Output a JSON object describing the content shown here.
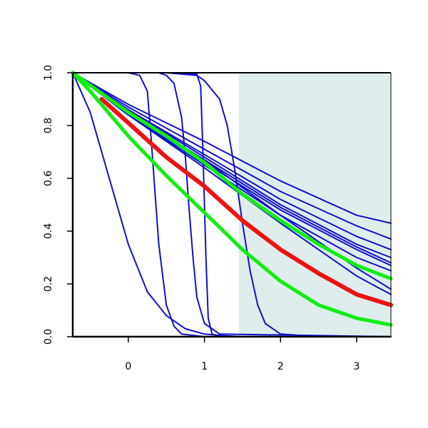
{
  "chart_data": {
    "type": "line",
    "title": "",
    "xlabel": "",
    "ylabel": "",
    "xlim": [
      -0.73,
      3.45
    ],
    "ylim": [
      0.0,
      1.0
    ],
    "x_ticks": [
      0,
      1,
      2,
      3
    ],
    "y_ticks": [
      0.0,
      0.2,
      0.4,
      0.6,
      0.8,
      1.0
    ],
    "x_tick_labels": [
      "0",
      "1",
      "2",
      "3"
    ],
    "y_tick_labels": [
      "0.0",
      "0.2",
      "0.4",
      "0.6",
      "0.8",
      "1.0"
    ],
    "shaded_region": {
      "x_start": 1.45,
      "x_end": 3.45,
      "color": "#dfeded"
    },
    "grid": false,
    "legend": "none",
    "colors": {
      "blue": "#1010cc",
      "red": "#ee1111",
      "green": "#11ee11",
      "axis": "#000000"
    },
    "series": [
      {
        "color": "#1010cc",
        "width": 2,
        "x": [
          -0.73,
          -0.5,
          -0.25,
          0.0,
          0.25,
          0.5,
          0.75,
          1.0,
          1.25,
          1.5,
          2.0,
          2.5,
          3.0,
          3.45
        ],
        "y": [
          1.0,
          0.85,
          0.6,
          0.35,
          0.17,
          0.08,
          0.03,
          0.01,
          0.004,
          0.0,
          0.0,
          0.0,
          0.0,
          0.0
        ]
      },
      {
        "color": "#1010cc",
        "width": 2,
        "x": [
          -0.73,
          0.0,
          0.15,
          0.25,
          0.3,
          0.35,
          0.4,
          0.5,
          0.6,
          0.7,
          1.0,
          3.45
        ],
        "y": [
          1.0,
          1.0,
          0.99,
          0.93,
          0.75,
          0.55,
          0.35,
          0.12,
          0.04,
          0.01,
          0.0,
          0.0
        ]
      },
      {
        "color": "#1010cc",
        "width": 2,
        "x": [
          -0.73,
          0.0,
          0.4,
          0.5,
          0.6,
          0.7,
          0.75,
          0.8,
          0.85,
          0.9,
          1.0,
          1.2,
          3.45
        ],
        "y": [
          1.0,
          1.0,
          1.0,
          0.99,
          0.96,
          0.83,
          0.68,
          0.48,
          0.3,
          0.15,
          0.05,
          0.01,
          0.0
        ]
      },
      {
        "color": "#1010cc",
        "width": 2,
        "x": [
          -0.73,
          0.5,
          0.9,
          0.95,
          0.98,
          1.0,
          1.02,
          1.05,
          1.1,
          1.2,
          3.45
        ],
        "y": [
          1.0,
          1.0,
          0.995,
          0.95,
          0.7,
          0.5,
          0.3,
          0.07,
          0.01,
          0.0,
          0.0
        ]
      },
      {
        "color": "#1010cc",
        "width": 2,
        "x": [
          -0.73,
          0.5,
          0.9,
          1.0,
          1.2,
          1.3,
          1.4,
          1.5,
          1.6,
          1.7,
          1.8,
          2.0,
          2.5,
          3.45
        ],
        "y": [
          1.0,
          1.0,
          0.99,
          0.97,
          0.9,
          0.8,
          0.63,
          0.43,
          0.25,
          0.12,
          0.05,
          0.01,
          0.0,
          0.0
        ]
      },
      {
        "color": "#1010cc",
        "width": 2,
        "x": [
          -0.73,
          0.0,
          1.0,
          2.0,
          3.0,
          3.45
        ],
        "y": [
          1.0,
          0.88,
          0.74,
          0.59,
          0.46,
          0.43
        ]
      },
      {
        "color": "#1010cc",
        "width": 2,
        "x": [
          -0.73,
          0.0,
          1.0,
          2.0,
          3.0,
          3.45
        ],
        "y": [
          1.0,
          0.87,
          0.71,
          0.55,
          0.42,
          0.37
        ]
      },
      {
        "color": "#1010cc",
        "width": 2,
        "x": [
          -0.73,
          0.0,
          1.0,
          2.0,
          3.0,
          3.45
        ],
        "y": [
          1.0,
          0.86,
          0.69,
          0.52,
          0.38,
          0.33
        ]
      },
      {
        "color": "#1010cc",
        "width": 2,
        "x": [
          -0.73,
          0.0,
          1.0,
          2.0,
          3.0,
          3.45
        ],
        "y": [
          1.0,
          0.86,
          0.68,
          0.5,
          0.35,
          0.3
        ]
      },
      {
        "color": "#1010cc",
        "width": 2,
        "x": [
          -0.73,
          0.0,
          1.0,
          2.0,
          3.0,
          3.45
        ],
        "y": [
          1.0,
          0.85,
          0.67,
          0.49,
          0.34,
          0.28
        ]
      },
      {
        "color": "#1010cc",
        "width": 2,
        "x": [
          -0.73,
          0.0,
          1.0,
          2.0,
          3.0,
          3.45
        ],
        "y": [
          1.0,
          0.84,
          0.66,
          0.48,
          0.33,
          0.27
        ]
      },
      {
        "color": "#1010cc",
        "width": 2,
        "x": [
          -0.73,
          0.0,
          1.0,
          2.0,
          3.0,
          3.45
        ],
        "y": [
          1.0,
          0.84,
          0.65,
          0.46,
          0.3,
          0.25
        ]
      },
      {
        "color": "#1010cc",
        "width": 2,
        "x": [
          -0.73,
          0.0,
          1.0,
          2.0,
          3.0,
          3.45
        ],
        "y": [
          1.0,
          0.85,
          0.67,
          0.46,
          0.26,
          0.18
        ]
      },
      {
        "color": "#1010cc",
        "width": 2,
        "x": [
          -0.73,
          0.0,
          1.0,
          2.0,
          3.0,
          3.45
        ],
        "y": [
          1.0,
          0.84,
          0.64,
          0.43,
          0.23,
          0.16
        ]
      },
      {
        "color": "#11ee11",
        "width": 5,
        "x": [
          -0.73,
          0.0,
          0.5,
          1.0,
          1.5,
          2.0,
          2.5,
          3.0,
          3.45
        ],
        "y": [
          1.0,
          0.85,
          0.76,
          0.66,
          0.54,
          0.44,
          0.35,
          0.27,
          0.22
        ]
      },
      {
        "color": "#ee1111",
        "width": 6,
        "x": [
          -0.35,
          0.0,
          0.5,
          1.0,
          1.5,
          2.0,
          2.5,
          3.0,
          3.45
        ],
        "y": [
          0.9,
          0.81,
          0.68,
          0.57,
          0.44,
          0.33,
          0.24,
          0.16,
          0.12
        ]
      },
      {
        "color": "#11ee11",
        "width": 5,
        "x": [
          -0.73,
          -0.5,
          0.0,
          0.5,
          1.0,
          1.5,
          2.0,
          2.5,
          3.0,
          3.45
        ],
        "y": [
          1.0,
          0.93,
          0.76,
          0.61,
          0.47,
          0.33,
          0.21,
          0.12,
          0.07,
          0.045
        ]
      }
    ]
  }
}
